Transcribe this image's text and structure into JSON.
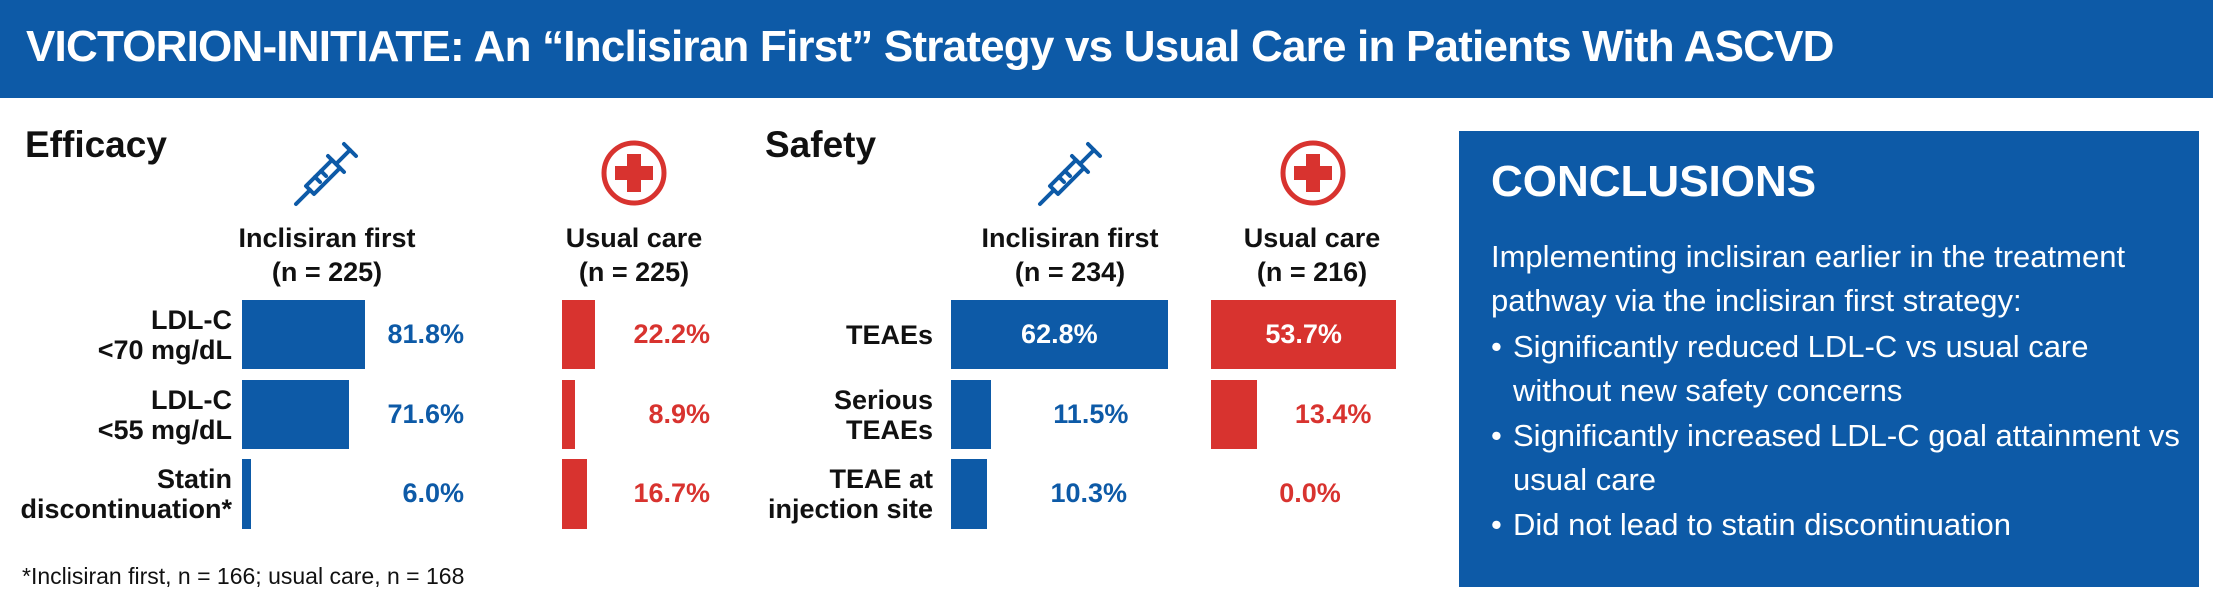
{
  "title": "VICTORION-INITIATE: An “Inclisiran First” Strategy vs Usual Care in Patients With ASCVD",
  "colors": {
    "inclisiran": "#0d5aa7",
    "usual_care": "#d8332f",
    "header_bg": "#0d5aa7"
  },
  "icons": {
    "inclisiran": "syringe-icon",
    "usual_care": "medical-cross-icon"
  },
  "efficacy": {
    "heading": "Efficacy",
    "inclisiran_head": [
      "Inclisiran first",
      "(n = 225)"
    ],
    "usual_head": [
      "Usual care",
      "(n = 225)"
    ]
  },
  "safety": {
    "heading": "Safety",
    "inclisiran_head": [
      "Inclisiran first",
      "(n = 234)"
    ],
    "usual_head": [
      "Usual care",
      "(n = 216)"
    ]
  },
  "footnote": "*Inclisiran first, n = 166; usual care, n = 168",
  "conclusions": {
    "heading": "CONCLUSIONS",
    "intro": "Implementing inclisiran earlier in the treatment pathway via the inclisiran first strategy:",
    "bullets": [
      "Significantly reduced LDL-C vs usual care without new safety concerns",
      "Significantly increased LDL-C goal attainment vs usual care",
      "Did not lead to statin discontinuation"
    ]
  },
  "chart_data": [
    {
      "type": "bar",
      "title": "Efficacy",
      "categories": [
        "LDL-C\n<70 mg/dL",
        "LDL-C\n<55 mg/dL",
        "Statin\ndiscontinuation*"
      ],
      "series": [
        {
          "name": "Inclisiran first (n = 225)",
          "values": [
            81.8,
            71.6,
            6.0
          ],
          "labels": [
            "81.8%",
            "71.6%",
            "6.0%"
          ]
        },
        {
          "name": "Usual care (n = 225)",
          "values": [
            22.2,
            8.9,
            16.7
          ],
          "labels": [
            "22.2%",
            "8.9%",
            "16.7%"
          ]
        }
      ]
    },
    {
      "type": "bar",
      "title": "Safety",
      "categories": [
        "TEAEs",
        "Serious\nTEAEs",
        "TEAE at\ninjection site"
      ],
      "series": [
        {
          "name": "Inclisiran first (n = 234)",
          "values": [
            62.8,
            11.5,
            10.3
          ],
          "labels": [
            "62.8%",
            "11.5%",
            "10.3%"
          ]
        },
        {
          "name": "Usual care (n = 216)",
          "values": [
            53.7,
            13.4,
            0.0
          ],
          "labels": [
            "53.7%",
            "13.4%",
            "0.0%"
          ]
        }
      ]
    }
  ]
}
